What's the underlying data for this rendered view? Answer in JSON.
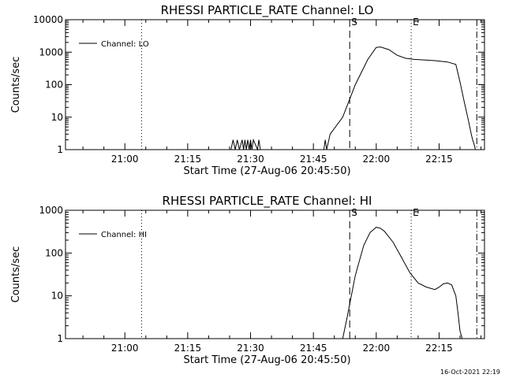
{
  "stamp": "16-Oct-2021 22:19",
  "chart_data": [
    {
      "type": "line",
      "title": "RHESSI PARTICLE_RATE Channel: LO",
      "xlabel": "Start Time (27-Aug-06 20:45:50)",
      "ylabel": "Counts/sec",
      "y_scale": "log",
      "ylim": [
        1,
        10000
      ],
      "xlim": [
        "20:45:50",
        "22:25:50"
      ],
      "x_ticks": [
        "21:00",
        "21:15",
        "21:30",
        "21:45",
        "22:00",
        "22:15"
      ],
      "y_ticks": [
        "1",
        "10",
        "100",
        "1000",
        "10000"
      ],
      "legend": {
        "label": "Channel: LO",
        "position": "top-left"
      },
      "markers": [
        {
          "label": "",
          "time": "21:04:00",
          "style": "dotted"
        },
        {
          "label": "S",
          "time": "21:53:40",
          "style": "dashed"
        },
        {
          "label": "E",
          "time": "22:08:20",
          "style": "dotted"
        },
        {
          "label": "",
          "time": "22:24:00",
          "style": "dashdot"
        }
      ],
      "series": [
        {
          "name": "Channel: LO",
          "x": [
            "21:25:20",
            "21:25:50",
            "21:26:20",
            "21:26:50",
            "21:27:20",
            "21:28:00",
            "21:28:20",
            "21:28:40",
            "21:29:00",
            "21:29:20",
            "21:29:40",
            "21:30:00",
            "21:30:20",
            "21:30:40",
            "21:31:40",
            "21:32:00",
            "21:32:20",
            "21:47:30",
            "21:47:50",
            "21:48:10",
            "21:49:00",
            "21:52:00",
            "21:55:00",
            "21:58:00",
            "22:00:00",
            "22:01:00",
            "22:03:00",
            "22:05:00",
            "22:07:00",
            "22:09:00",
            "22:11:00",
            "22:14:00",
            "22:17:00",
            "22:19:00",
            "22:20:00",
            "22:21:00",
            "22:22:00",
            "22:22:40",
            "22:23:00",
            "22:23:20",
            "22:23:40"
          ],
          "values": [
            1,
            2,
            1,
            2,
            1,
            2,
            1,
            2,
            1,
            2,
            1,
            2,
            1,
            2,
            1,
            2,
            1,
            1,
            2,
            1,
            3,
            10,
            100,
            600,
            1400,
            1450,
            1200,
            800,
            650,
            600,
            580,
            550,
            500,
            420,
            120,
            30,
            8,
            3,
            2,
            1.5,
            1
          ]
        }
      ]
    },
    {
      "type": "line",
      "title": "RHESSI PARTICLE_RATE Channel: HI",
      "xlabel": "Start Time (27-Aug-06 20:45:50)",
      "ylabel": "Counts/sec",
      "y_scale": "log",
      "ylim": [
        1,
        1000
      ],
      "xlim": [
        "20:45:50",
        "22:25:50"
      ],
      "x_ticks": [
        "21:00",
        "21:15",
        "21:30",
        "21:45",
        "22:00",
        "22:15"
      ],
      "y_ticks": [
        "1",
        "10",
        "100",
        "1000"
      ],
      "legend": {
        "label": "Channel: HI",
        "position": "top-left"
      },
      "markers": [
        {
          "label": "",
          "time": "21:04:00",
          "style": "dotted"
        },
        {
          "label": "S",
          "time": "21:53:40",
          "style": "dashed"
        },
        {
          "label": "E",
          "time": "22:08:20",
          "style": "dotted"
        },
        {
          "label": "",
          "time": "22:24:00",
          "style": "dashdot"
        }
      ],
      "series": [
        {
          "name": "Channel: HI",
          "x": [
            "21:52:00",
            "21:53:00",
            "21:55:00",
            "21:57:00",
            "21:58:30",
            "22:00:00",
            "22:01:00",
            "22:02:00",
            "22:04:00",
            "22:06:00",
            "22:08:00",
            "22:10:00",
            "22:12:00",
            "22:14:00",
            "22:15:00",
            "22:16:00",
            "22:17:00",
            "22:18:00",
            "22:19:00",
            "22:19:30",
            "22:20:00",
            "22:20:30"
          ],
          "values": [
            1,
            3,
            30,
            150,
            300,
            400,
            380,
            320,
            180,
            80,
            35,
            20,
            16,
            14,
            16,
            19,
            20,
            18,
            10,
            4,
            1.5,
            1
          ]
        }
      ]
    }
  ]
}
